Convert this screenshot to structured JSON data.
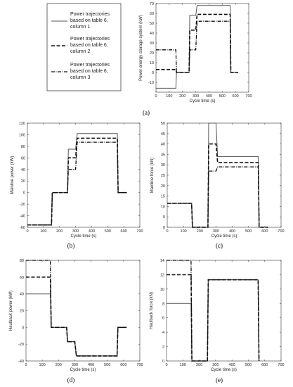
{
  "legend": {
    "entries": [
      [
        "Power trajectories",
        "based on table 6,",
        "column 1"
      ],
      [
        "Power trajectories",
        "based on table 6,",
        "column 2"
      ],
      [
        "Power trajectories",
        "based on table 6,",
        "column 3"
      ]
    ]
  },
  "chart_data": [
    {
      "type": "line",
      "panel_label": "(a)",
      "xlabel": "Cycle time (s)",
      "ylabel": "Power energy storage system (kW)",
      "xlim": [
        0,
        700
      ],
      "ylim": [
        -20,
        70
      ],
      "xticks": [
        0,
        100,
        200,
        300,
        400,
        500,
        600,
        700
      ],
      "yticks": [
        -10,
        0,
        10,
        20,
        30,
        40,
        50,
        60,
        70
      ],
      "grid": false,
      "series": [
        {
          "name": "Power trajectories based on table 6, column 1",
          "x": [
            0,
            150,
            155,
            250,
            255,
            300,
            310,
            560,
            565,
            620
          ],
          "y": [
            -16,
            -16,
            0,
            0,
            58,
            58,
            68,
            68,
            0,
            0
          ]
        },
        {
          "name": "Power trajectories based on table 6, column 2",
          "x": [
            0,
            150,
            155,
            250,
            255,
            300,
            310,
            560,
            565,
            620
          ],
          "y": [
            3,
            3,
            0,
            0,
            43,
            43,
            59,
            59,
            0,
            0
          ]
        },
        {
          "name": "Power trajectories based on table 6, column 3",
          "x": [
            0,
            150,
            155,
            250,
            255,
            300,
            310,
            560,
            565,
            620
          ],
          "y": [
            23,
            23,
            0,
            0,
            23,
            23,
            52,
            52,
            0,
            0
          ]
        }
      ]
    },
    {
      "type": "line",
      "panel_label": "(b)",
      "xlabel": "Cycle time (s)",
      "ylabel": "Mainline power (kW)",
      "xlim": [
        0,
        700
      ],
      "ylim": [
        -60,
        120
      ],
      "xticks": [
        0,
        100,
        200,
        300,
        400,
        500,
        600,
        700
      ],
      "yticks": [
        -60,
        -40,
        -20,
        0,
        20,
        40,
        60,
        80,
        100,
        120
      ],
      "grid": false,
      "series": [
        {
          "name": "Power trajectories based on table 6, column 1",
          "x": [
            0,
            150,
            155,
            250,
            255,
            300,
            310,
            560,
            565,
            620
          ],
          "y": [
            -56,
            -56,
            0,
            0,
            75,
            75,
            102,
            102,
            0,
            0
          ]
        },
        {
          "name": "Power trajectories based on table 6, column 2",
          "x": [
            0,
            150,
            155,
            250,
            255,
            300,
            310,
            560,
            565,
            620
          ],
          "y": [
            -56,
            -56,
            0,
            0,
            60,
            60,
            94,
            94,
            0,
            0
          ]
        },
        {
          "name": "Power trajectories based on table 6, column 3",
          "x": [
            0,
            150,
            155,
            250,
            255,
            300,
            310,
            560,
            565,
            620
          ],
          "y": [
            -56,
            -56,
            0,
            0,
            40,
            40,
            87,
            87,
            0,
            0
          ]
        }
      ]
    },
    {
      "type": "line",
      "panel_label": "(c)",
      "xlabel": "Cycle time (s)",
      "ylabel": "Mainline force (kN)",
      "xlim": [
        0,
        700
      ],
      "ylim": [
        0,
        50
      ],
      "xticks": [
        0,
        100,
        200,
        300,
        400,
        500,
        600,
        700
      ],
      "yticks": [
        0,
        5,
        10,
        15,
        20,
        25,
        30,
        35,
        40,
        45,
        50
      ],
      "grid": false,
      "series": [
        {
          "name": "Power trajectories based on table 6, column 1",
          "x": [
            0,
            150,
            155,
            250,
            255,
            300,
            310,
            560,
            565,
            620
          ],
          "y": [
            11.5,
            11.5,
            0,
            0,
            50,
            50,
            34,
            34,
            0,
            0
          ]
        },
        {
          "name": "Power trajectories based on table 6, column 2",
          "x": [
            0,
            150,
            155,
            250,
            255,
            300,
            310,
            560,
            565,
            620
          ],
          "y": [
            11.5,
            11.5,
            0,
            0,
            40,
            40,
            31,
            31,
            0,
            0
          ]
        },
        {
          "name": "Power trajectories based on table 6, column 3",
          "x": [
            0,
            150,
            155,
            250,
            255,
            300,
            310,
            560,
            565,
            620
          ],
          "y": [
            11.5,
            11.5,
            0,
            0,
            27,
            27,
            29,
            29,
            0,
            0
          ]
        }
      ]
    },
    {
      "type": "line",
      "panel_label": "(d)",
      "xlabel": "Cycle time (s)",
      "ylabel": "Haulback power (kW)",
      "xlim": [
        0,
        700
      ],
      "ylim": [
        -40,
        80
      ],
      "xticks": [
        0,
        100,
        200,
        300,
        400,
        500,
        600,
        700
      ],
      "yticks": [
        -40,
        -20,
        0,
        20,
        40,
        60,
        80
      ],
      "grid": false,
      "series": [
        {
          "name": "Power trajectories based on table 6, column 1",
          "x": [
            0,
            150,
            155,
            250,
            255,
            300,
            310,
            560,
            565,
            620
          ],
          "y": [
            40,
            40,
            0,
            0,
            -17,
            -17,
            -34,
            -34,
            0,
            0
          ]
        },
        {
          "name": "Power trajectories based on table 6, column 2",
          "x": [
            0,
            150,
            155,
            250,
            255,
            300,
            310,
            560,
            565,
            620
          ],
          "y": [
            60,
            60,
            0,
            0,
            -17,
            -17,
            -34,
            -34,
            0,
            0
          ]
        },
        {
          "name": "Power trajectories based on table 6, column 3",
          "x": [
            0,
            150,
            155,
            250,
            255,
            300,
            310,
            560,
            565,
            620
          ],
          "y": [
            80,
            80,
            0,
            0,
            -17,
            -17,
            -34,
            -34,
            0,
            0
          ]
        }
      ]
    },
    {
      "type": "line",
      "panel_label": "(e)",
      "xlabel": "Cycle time (s)",
      "ylabel": "Haulback force (kN)",
      "xlim": [
        0,
        700
      ],
      "ylim": [
        0,
        14
      ],
      "xticks": [
        0,
        100,
        200,
        300,
        400,
        500,
        600,
        700
      ],
      "yticks": [
        0,
        2,
        4,
        6,
        8,
        10,
        12,
        14
      ],
      "grid": false,
      "series": [
        {
          "name": "Power trajectories based on table 6, column 1",
          "x": [
            0,
            150,
            155,
            250,
            255,
            560,
            565
          ],
          "y": [
            8,
            8,
            0,
            0,
            11.3,
            11.3,
            0
          ]
        },
        {
          "name": "Power trajectories based on table 6, column 2",
          "x": [
            0,
            150,
            155,
            250,
            255,
            560,
            565
          ],
          "y": [
            12,
            12,
            0,
            0,
            11.3,
            11.3,
            0
          ]
        },
        {
          "name": "Power trajectories based on table 6, column 3",
          "x": [
            0,
            150,
            155,
            250,
            255,
            560,
            565
          ],
          "y": [
            14,
            14,
            0,
            0,
            11.3,
            11.3,
            0
          ]
        }
      ]
    }
  ]
}
